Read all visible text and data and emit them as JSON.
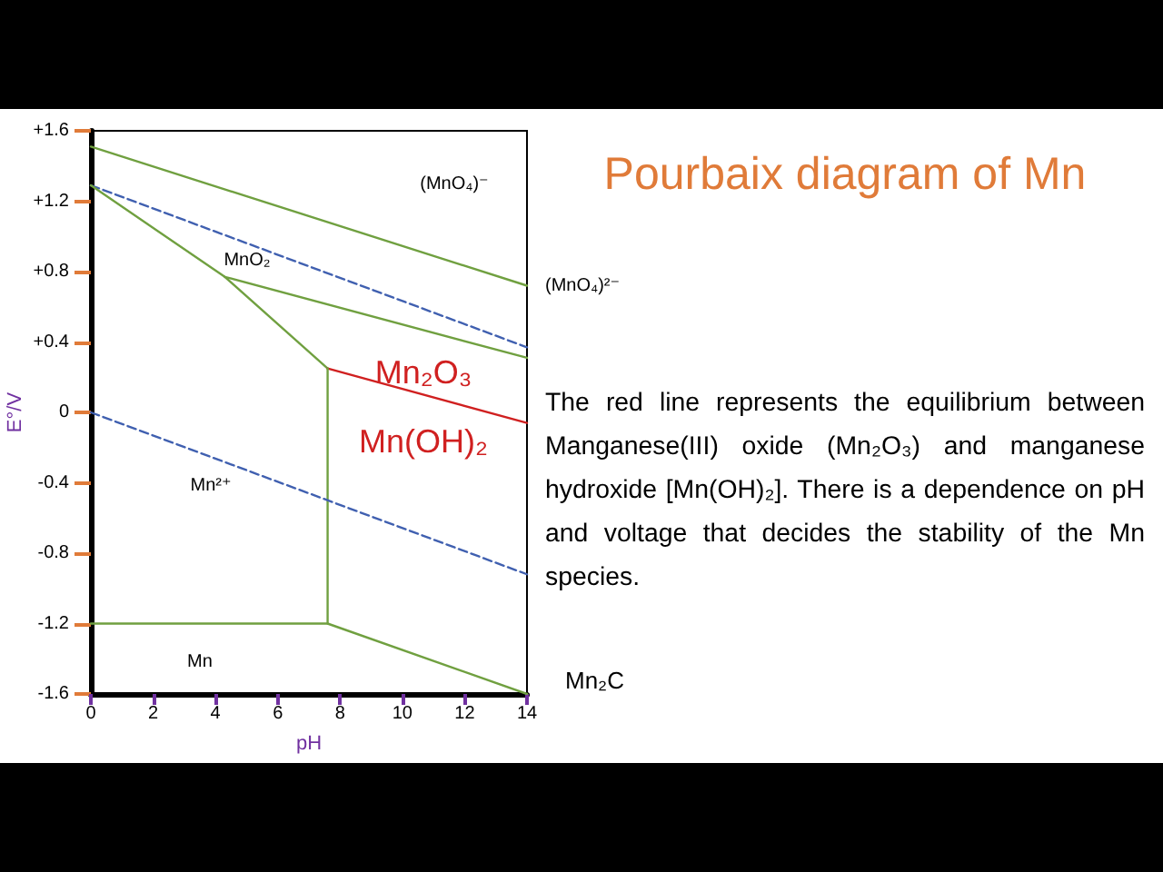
{
  "chart_data": {
    "type": "line",
    "title": "Pourbaix diagram of Mn",
    "xlabel": "pH",
    "ylabel": "E°/V",
    "xlim": [
      0,
      14
    ],
    "xticks": [
      0,
      2,
      4,
      6,
      8,
      10,
      12,
      14
    ],
    "ylim": [
      -1.6,
      1.6
    ],
    "yticks": [
      {
        "value": -1.6,
        "label": "-1.6"
      },
      {
        "value": -1.2,
        "label": "-1.2"
      },
      {
        "value": -0.8,
        "label": "-0.8"
      },
      {
        "value": -0.4,
        "label": "-0.4"
      },
      0,
      {
        "value": 0.4,
        "label": "+0.4"
      },
      {
        "value": 0.8,
        "label": "+0.8"
      },
      {
        "value": 1.2,
        "label": "+1.2"
      },
      {
        "value": 1.6,
        "label": "+1.6"
      }
    ],
    "grid": false,
    "marker": "none",
    "series": [
      {
        "x": [
          0,
          14
        ],
        "values": [
          1.51,
          0.72
        ],
        "color": "#70a040",
        "line_style": "solid"
      },
      {
        "x": [
          0,
          14
        ],
        "values": [
          1.29,
          0.37
        ],
        "color": "#4060b0",
        "line_style": "dashed"
      },
      {
        "x": [
          0,
          4.3,
          7.6
        ],
        "values": [
          1.29,
          0.77,
          0.25
        ],
        "color": "#70a040",
        "line_style": "solid"
      },
      {
        "x": [
          4.3,
          14
        ],
        "values": [
          0.77,
          0.31
        ],
        "color": "#70a040",
        "line_style": "solid"
      },
      {
        "x": [
          7.6,
          14
        ],
        "values": [
          0.25,
          -0.06
        ],
        "color": "#d02020",
        "line_style": "solid"
      },
      {
        "x": [
          7.6,
          7.6
        ],
        "values": [
          0.25,
          -1.2
        ],
        "color": "#70a040",
        "line_style": "solid"
      },
      {
        "x": [
          0,
          7.6,
          14
        ],
        "values": [
          -1.2,
          -1.2,
          -1.6
        ],
        "color": "#70a040",
        "line_style": "solid"
      },
      {
        "x": [
          0,
          14
        ],
        "values": [
          0,
          -0.92
        ],
        "color": "#4060b0",
        "line_style": "dashed"
      }
    ],
    "annotations": [
      "(MnO₄)⁻",
      "MnO₂",
      "Mn²⁺",
      "Mn",
      {
        "text": "(MnO₄)²⁻",
        "x": 14,
        "y": 0.72
      },
      "Mn₂O₃",
      "Mn(OH)₂",
      "The red line represents the equilibrium between Manganese(III) oxide (Mn₂O₃) and manganese hydroxide [Mn(OH)₂]. There is a dependence on pH and voltage that decides the stability of the Mn species.",
      "Mn₂C"
    ]
  }
}
